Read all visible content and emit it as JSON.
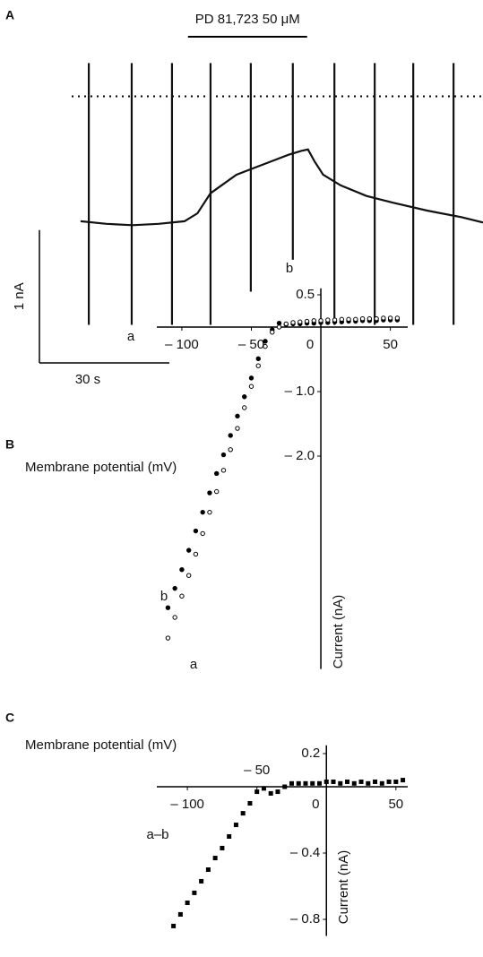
{
  "chart_data": [
    {
      "type": "trace",
      "title": "A",
      "drug": {
        "label": "PD 81,723 50 μM",
        "start": 24.8,
        "end": 52.3
      },
      "x": [
        0,
        6,
        12,
        18,
        24,
        27,
        30,
        33,
        36,
        40,
        44,
        48,
        51,
        52.5,
        54,
        56,
        60,
        66,
        72,
        80,
        88,
        92.9
      ],
      "values": [
        0.01,
        -0.01,
        -0.02,
        -0.01,
        0.01,
        0.07,
        0.22,
        0.29,
        0.36,
        0.41,
        0.46,
        0.51,
        0.54,
        0.55,
        0.46,
        0.36,
        0.28,
        0.2,
        0.15,
        0.09,
        0.04,
        0.0
      ],
      "ramps": {
        "x": [
          1.9,
          11.8,
          21.1,
          30.0,
          39.3,
          49.0,
          58.6,
          67.9,
          76.8,
          86.1
        ],
        "top": [
          1.2,
          1.2,
          1.2,
          1.2,
          1.2,
          1.2,
          1.2,
          1.2,
          1.2,
          1.2
        ],
        "bottom": [
          -0.77,
          -0.77,
          -0.77,
          -0.77,
          -0.52,
          -0.28,
          -0.77,
          -0.77,
          -0.77,
          -0.77
        ]
      },
      "reference_level": 0.95,
      "scale_bars": {
        "y": {
          "value": 1,
          "label": "1 nA"
        },
        "x": {
          "value": 30,
          "label": "30 s"
        }
      },
      "annotations": [
        "a",
        "b"
      ],
      "xlim": [
        -9.5,
        92.9
      ],
      "ylim": [
        -1.09,
        1.27
      ],
      "color": "#111"
    },
    {
      "type": "scatter",
      "title": "B",
      "xlabel": "Membrane potential (mV)",
      "ylabel": "Current (nA)",
      "x": [
        -110,
        -105,
        -100,
        -95,
        -90,
        -85,
        -80,
        -75,
        -70,
        -65,
        -60,
        -55,
        -50,
        -45,
        -40,
        -35,
        -30,
        -25,
        -20,
        -15,
        -10,
        -5,
        0,
        5,
        10,
        15,
        20,
        25,
        30,
        35,
        40,
        45,
        50,
        55
      ],
      "series": [
        {
          "name": "b",
          "color": "#000",
          "marker": "filled",
          "values": [
            -4.35,
            -4.05,
            -3.76,
            -3.46,
            -3.16,
            -2.87,
            -2.57,
            -2.27,
            -1.98,
            -1.68,
            -1.38,
            -1.08,
            -0.79,
            -0.49,
            -0.22,
            -0.04,
            0.06,
            0.04,
            0.05,
            0.05,
            0.06,
            0.06,
            0.07,
            0.07,
            0.08,
            0.08,
            0.09,
            0.09,
            0.1,
            0.1,
            0.1,
            0.11,
            0.11,
            0.11
          ]
        },
        {
          "name": "a",
          "color": "#000",
          "marker": "open",
          "values": [
            -4.82,
            -4.5,
            -4.17,
            -3.85,
            -3.52,
            -3.2,
            -2.87,
            -2.55,
            -2.22,
            -1.9,
            -1.57,
            -1.25,
            -0.92,
            -0.6,
            -0.3,
            -0.08,
            0.0,
            0.05,
            0.07,
            0.08,
            0.09,
            0.1,
            0.1,
            0.11,
            0.11,
            0.12,
            0.12,
            0.12,
            0.13,
            0.13,
            0.13,
            0.14,
            0.14,
            0.14
          ]
        }
      ],
      "xlim": [
        -118,
        62.5
      ],
      "ylim": [
        -5.3,
        0.6
      ],
      "xticks": [
        {
          "value": -100,
          "label": "– 100"
        },
        {
          "value": -50,
          "label": "– 50"
        },
        0,
        50
      ],
      "yticks": [
        0.5,
        {
          "value": -1,
          "label": "– 1.0"
        },
        {
          "value": -2,
          "label": "– 2.0"
        }
      ]
    },
    {
      "type": "scatter",
      "title": "C",
      "xlabel": "Membrane potential (mV)",
      "ylabel": "Current (nA)",
      "x": [
        -110,
        -105,
        -100,
        -95,
        -90,
        -85,
        -80,
        -75,
        -70,
        -65,
        -60,
        -55,
        -50,
        -45,
        -40,
        -35,
        -30,
        -25,
        -20,
        -15,
        -10,
        -5,
        0,
        5,
        10,
        15,
        20,
        25,
        30,
        35,
        40,
        45,
        50,
        55
      ],
      "series": [
        {
          "name": "a–b",
          "color": "#000",
          "marker": "square",
          "values": [
            -0.84,
            -0.77,
            -0.7,
            -0.64,
            -0.57,
            -0.5,
            -0.43,
            -0.37,
            -0.3,
            -0.23,
            -0.16,
            -0.1,
            -0.03,
            -0.01,
            -0.04,
            -0.03,
            0.0,
            0.02,
            0.02,
            0.02,
            0.02,
            0.02,
            0.03,
            0.03,
            0.02,
            0.03,
            0.02,
            0.03,
            0.02,
            0.03,
            0.02,
            0.03,
            0.03,
            0.04
          ]
        }
      ],
      "xlim": [
        -122,
        58.5
      ],
      "ylim": [
        -0.9,
        0.25
      ],
      "xticks": [
        {
          "value": -100,
          "label": "– 100"
        },
        {
          "value": -50,
          "label": "– 50"
        },
        0,
        50
      ],
      "yticks": [
        0.2,
        {
          "value": -0.4,
          "label": "– 0.4"
        },
        {
          "value": -0.8,
          "label": "– 0.8"
        }
      ]
    }
  ]
}
